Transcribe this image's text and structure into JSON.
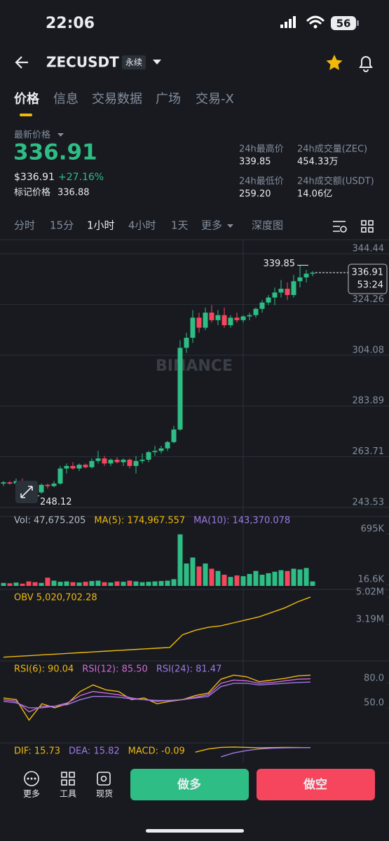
{
  "status": {
    "time": "22:06",
    "battery": "56"
  },
  "header": {
    "symbol": "ZECUSDT",
    "contract": "永续"
  },
  "tabs": [
    "价格",
    "信息",
    "交易数据",
    "广场",
    "交易-X"
  ],
  "summary": {
    "last_label": "最新价格",
    "last_price": "336.91",
    "usd": "$336.91",
    "change": "+27.16%",
    "mark_label": "标记价格",
    "mark_price": "336.88",
    "stats": [
      {
        "label": "24h最高价",
        "value": "339.85"
      },
      {
        "label": "24h成交量(ZEC)",
        "value": "454.33万"
      },
      {
        "label": "24h最低价",
        "value": "259.20"
      },
      {
        "label": "24h成交额(USDT)",
        "value": "14.06亿"
      }
    ]
  },
  "intervals": [
    "分时",
    "15分",
    "1小时",
    "4小时",
    "1天",
    "更多",
    "深度图"
  ],
  "chart_data": [
    {
      "type": "candlestick",
      "watermark": "BINANCE",
      "up_color": "#2ebd85",
      "down_color": "#f6465d",
      "ylim": [
        240.46,
        349.18
      ],
      "yticks": [
        344.44,
        324.26,
        304.08,
        283.89,
        263.71,
        243.53
      ],
      "grid": true,
      "high_label": 339.85,
      "low_label": 248.12,
      "last_price": 336.91,
      "countdown": "53:24",
      "ohlc": [
        [
          253,
          254,
          252,
          253.5
        ],
        [
          253.5,
          254,
          252.5,
          253
        ],
        [
          253,
          255,
          250,
          254
        ],
        [
          254,
          255,
          252,
          252.5
        ],
        [
          252.5,
          253,
          250,
          251
        ],
        [
          251,
          252,
          248.12,
          249.5
        ],
        [
          249.5,
          253,
          249,
          252.5
        ],
        [
          252.5,
          253,
          251,
          252
        ],
        [
          252,
          254,
          251.5,
          253
        ],
        [
          253,
          260,
          252.5,
          259
        ],
        [
          259,
          261,
          257,
          260
        ],
        [
          260,
          261.5,
          258.5,
          259
        ],
        [
          259,
          261,
          258,
          260.5
        ],
        [
          260.5,
          261,
          259,
          259.5
        ],
        [
          259.5,
          263,
          259,
          262
        ],
        [
          262,
          266,
          261,
          263
        ],
        [
          263,
          264,
          260,
          261
        ],
        [
          261,
          263,
          260,
          262.5
        ],
        [
          262.5,
          263.5,
          261,
          261.5
        ],
        [
          261.5,
          263,
          260,
          262.5
        ],
        [
          262.5,
          263,
          259,
          260
        ],
        [
          260,
          264,
          257,
          262
        ],
        [
          262,
          265,
          261,
          262.5
        ],
        [
          262.5,
          266,
          261.5,
          265.5
        ],
        [
          265.5,
          268,
          264,
          266
        ],
        [
          266,
          268,
          265,
          267
        ],
        [
          267,
          270,
          266,
          269.5
        ],
        [
          269.5,
          276,
          269,
          274.5
        ],
        [
          274.5,
          310,
          274,
          307
        ],
        [
          307,
          313,
          305,
          311
        ],
        [
          311,
          322,
          309,
          319
        ],
        [
          319,
          321,
          313,
          315
        ],
        [
          315,
          323,
          314,
          321
        ],
        [
          321,
          324,
          317,
          318
        ],
        [
          318,
          322,
          316,
          320
        ],
        [
          320,
          323,
          315,
          316
        ],
        [
          316,
          320,
          315,
          319
        ],
        [
          319,
          321,
          317,
          318
        ],
        [
          318,
          320,
          317,
          319.5
        ],
        [
          319.5,
          321,
          318,
          320
        ],
        [
          320,
          323,
          319,
          322.5
        ],
        [
          322.5,
          326,
          321,
          325
        ],
        [
          325,
          328,
          324,
          327
        ],
        [
          327,
          331,
          324,
          329
        ],
        [
          329,
          334,
          327,
          330.5
        ],
        [
          330.5,
          333,
          326,
          328
        ],
        [
          328,
          336,
          327,
          333.5
        ],
        [
          333.5,
          339.85,
          331,
          335
        ],
        [
          335,
          338,
          333,
          336.5
        ],
        [
          336.5,
          337.5,
          335.5,
          336.91
        ]
      ]
    },
    {
      "type": "bar",
      "legend": [
        {
          "name": "Vol: 47,675.205",
          "color": "#b7bdc6"
        },
        {
          "name": "MA(5): 174,967.557",
          "color": "#f0b90b"
        },
        {
          "name": "MA(10): 143,370.078",
          "color": "#9f7ae5"
        }
      ],
      "ylim": [
        0,
        760
      ],
      "yticks": [
        {
          "value": 695,
          "label": "695K"
        },
        {
          "value": 16.6,
          "label": "16.6K"
        }
      ],
      "values": [
        40,
        35,
        45,
        30,
        60,
        50,
        40,
        110,
        70,
        55,
        60,
        50,
        45,
        55,
        65,
        70,
        50,
        45,
        60,
        55,
        70,
        60,
        50,
        55,
        60,
        65,
        70,
        90,
        690,
        300,
        380,
        260,
        300,
        230,
        200,
        150,
        120,
        140,
        130,
        160,
        200,
        150,
        170,
        190,
        210,
        200,
        230,
        220,
        240,
        60
      ]
    },
    {
      "type": "line",
      "series": [
        {
          "name": "OBV 5,020,702.28",
          "color": "#f0b90b",
          "values": [
            1.0,
            1.05,
            1.1,
            1.15,
            1.2,
            1.25,
            1.3,
            1.35,
            1.4,
            1.45,
            1.5,
            1.55,
            1.6,
            1.65,
            2.5,
            2.8,
            3.0,
            3.1,
            3.3,
            3.5,
            3.7,
            4.0,
            4.3,
            4.7,
            5.02
          ]
        }
      ],
      "ylim": [
        0.89,
        5.44
      ],
      "yticks": [
        {
          "value": 5.02,
          "label": "5.02M"
        },
        {
          "value": 3.19,
          "label": "3.19M"
        }
      ]
    },
    {
      "type": "line",
      "series": [
        {
          "name": "RSI(6): 90.04",
          "color": "#f0b90b",
          "values": [
            62,
            60,
            35,
            55,
            50,
            55,
            70,
            78,
            72,
            70,
            60,
            62,
            55,
            58,
            60,
            65,
            68,
            85,
            90,
            88,
            82,
            84,
            86,
            89,
            90
          ]
        },
        {
          "name": "RSI(12): 85.50",
          "color": "#d16ad5",
          "values": [
            60,
            58,
            45,
            52,
            52,
            56,
            65,
            70,
            68,
            66,
            62,
            60,
            58,
            59,
            60,
            63,
            66,
            80,
            84,
            83,
            80,
            81,
            83,
            85,
            85.5
          ]
        },
        {
          "name": "RSI(24): 81.47",
          "color": "#9f7ae5",
          "values": [
            58,
            56,
            50,
            50,
            52,
            54,
            60,
            64,
            64,
            63,
            61,
            60,
            59,
            59,
            60,
            62,
            64,
            76,
            80,
            80,
            78,
            79,
            80,
            81,
            81.5
          ]
        }
      ],
      "ylim": [
        17.4,
        105.7
      ],
      "yticks": [
        {
          "value": 80,
          "label": "80.0"
        },
        {
          "value": 50,
          "label": "50.0"
        }
      ]
    },
    {
      "type": "line",
      "indicator": "MACD: -0.09",
      "series": [
        {
          "name": "DIF: 15.73",
          "color": "#f0b90b",
          "values": [
            null,
            null,
            null,
            null,
            null,
            null,
            null,
            null,
            null,
            null,
            null,
            null,
            null,
            null,
            null,
            10,
            14,
            16,
            16.5,
            16,
            15.5,
            15.8,
            16,
            15.9,
            15.73
          ]
        },
        {
          "name": "DEA: 15.82",
          "color": "#9f7ae5",
          "values": [
            null,
            null,
            null,
            null,
            null,
            null,
            null,
            null,
            null,
            null,
            null,
            null,
            null,
            null,
            null,
            null,
            null,
            4,
            9,
            12,
            14,
            15,
            15.5,
            15.7,
            15.82
          ]
        }
      ],
      "ylim": [
        -5,
        20
      ],
      "yticks": []
    }
  ],
  "bottom": {
    "tools": [
      "更多",
      "工具",
      "现货"
    ],
    "long": "做多",
    "short": "做空"
  }
}
